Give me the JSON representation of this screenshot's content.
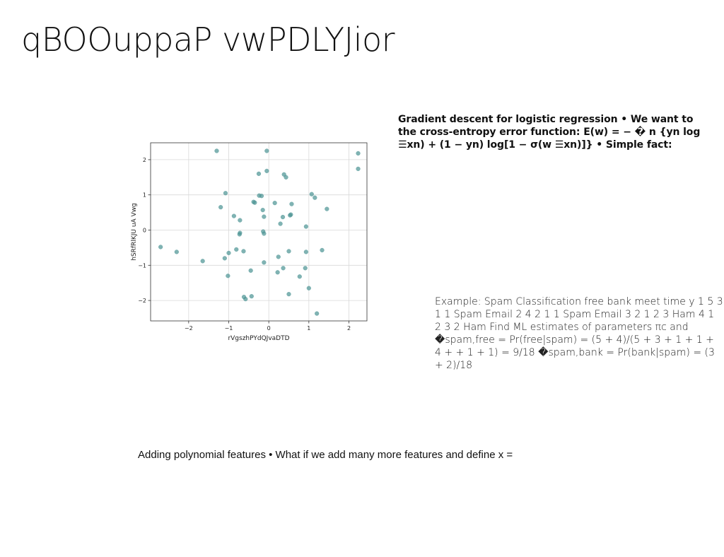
{
  "slide": {
    "title": "qBOOuppaP vwPDLYJior",
    "gradient_descent_text": "Gradient descent for logistic regression • We want to the cross-entropy error function: E(w) = − � n {yn log ☰xn) + (1 − yn) log[1 − σ(w ☰xn)]} • Simple fact:",
    "spam_example_text": "Example: Spam Classification free bank meet time y 1 5 3 1 1 Spam Email 2 4 2 1 1 Spam Email 3 2 1 2 3 Ham 4 1 2 3 2 Ham Find ML estimates of parameters πc and �spam,free = Pr(free|spam) = (5 + 4)/(5 + 3 + 1 + 1 + 4 + + 1 + 1) = 9/18 �spam,bank = Pr(bank|spam) = (3 + 2)/18",
    "polynomial_text": "Adding polynomial features • What if we add many more features and define x ="
  },
  "colors": {
    "point": "#4a9393",
    "grid": "#d9d9d9",
    "axis": "#333333"
  },
  "chart_data": {
    "type": "scatter",
    "xlabel": "rVgszhPYdQJvaDTD",
    "ylabel": "hSRfRlKJU uA Vwg",
    "xlim": [
      -2.95,
      2.45
    ],
    "ylim": [
      -2.58,
      2.48
    ],
    "xticks": [
      -2,
      -1,
      0,
      1,
      2
    ],
    "yticks": [
      -2,
      -1,
      0,
      1,
      2
    ],
    "xtick_labels": [
      "−2",
      "−1",
      "0",
      "1",
      "2"
    ],
    "ytick_labels": [
      "−2",
      "−1",
      "0",
      "1",
      "2"
    ],
    "grid": true,
    "x": [
      -1.3,
      -0.05,
      2.23,
      2.23,
      -0.05,
      -0.25,
      0.38,
      0.43,
      -1.08,
      1.07,
      1.15,
      -0.38,
      -0.35,
      -0.24,
      -0.18,
      -1.2,
      0.15,
      0.57,
      1.45,
      -0.15,
      0.55,
      0.53,
      -0.87,
      0.35,
      -0.12,
      -0.72,
      0.29,
      0.93,
      -0.14,
      -0.12,
      -0.72,
      -0.73,
      -2.7,
      -2.3,
      -0.81,
      -0.63,
      -1.0,
      0.5,
      1.33,
      0.93,
      -1.1,
      0.24,
      -1.65,
      -0.12,
      0.36,
      -0.45,
      0.22,
      0.91,
      -1.02,
      0.77,
      1.0,
      0.5,
      -0.62,
      -0.43,
      -0.58,
      1.2
    ],
    "y": [
      2.25,
      2.25,
      2.18,
      1.74,
      1.68,
      1.6,
      1.58,
      1.5,
      1.05,
      1.02,
      0.92,
      0.8,
      0.78,
      0.98,
      0.97,
      0.65,
      0.77,
      0.74,
      0.6,
      0.57,
      0.44,
      0.42,
      0.4,
      0.37,
      0.38,
      0.28,
      0.18,
      0.1,
      -0.04,
      -0.1,
      -0.08,
      -0.12,
      -0.48,
      -0.62,
      -0.55,
      -0.6,
      -0.65,
      -0.6,
      -0.57,
      -0.62,
      -0.8,
      -0.76,
      -0.88,
      -0.92,
      -1.08,
      -1.15,
      -1.2,
      -1.08,
      -1.3,
      -1.32,
      -1.65,
      -1.82,
      -1.9,
      -1.88,
      -1.96,
      -2.37
    ]
  }
}
